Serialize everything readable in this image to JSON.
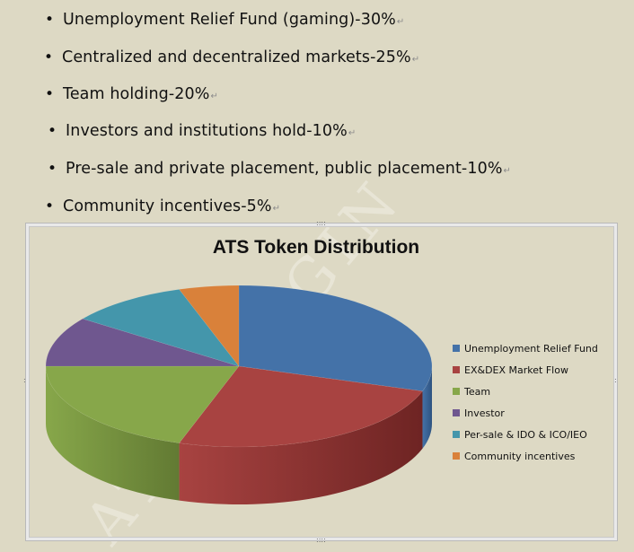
{
  "bullets": [
    {
      "text": "Unemployment Relief Fund (gaming)-30%",
      "mark": "↵"
    },
    {
      "text": "Centralized and decentralized markets-25%",
      "mark": "↵"
    },
    {
      "text": "Team holding-20%",
      "mark": "↵"
    },
    {
      "text": "Investors and institutions hold-10%",
      "mark": "↵"
    },
    {
      "text": "Pre-sale and private placement, public placement-10%",
      "mark": "↵"
    },
    {
      "text": "Community incentives-5%",
      "mark": "↵"
    }
  ],
  "bullet_glyph": "•",
  "watermark": "ATS ORIGIN",
  "chart_data": {
    "type": "pie",
    "title": "ATS Token Distribution",
    "legend_position": "right",
    "categories": [
      "Unemployment Relief Fund",
      "EX&DEX Market Flow",
      "Team",
      "Investor",
      "Per-sale & IDO & ICO/IEO",
      "Community incentives"
    ],
    "values": [
      30,
      25,
      20,
      10,
      10,
      5
    ],
    "colors": [
      "#4472a8",
      "#a84341",
      "#87a74a",
      "#6f578f",
      "#4496ab",
      "#d9813a"
    ],
    "side_colors": [
      "#2e5380",
      "#6e2423",
      "#627a33",
      "#4e3d66",
      "#2d6c7c",
      "#a8602a"
    ]
  }
}
